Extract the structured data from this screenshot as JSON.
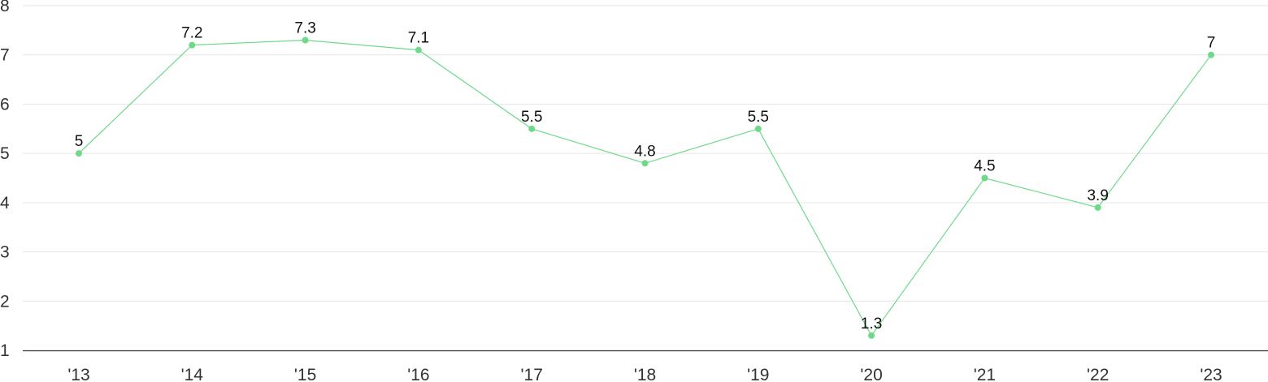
{
  "chart_data": {
    "type": "line",
    "title": "",
    "xlabel": "",
    "ylabel": "",
    "categories": [
      "'13",
      "'14",
      "'15",
      "'16",
      "'17",
      "'18",
      "'19",
      "'20",
      "'21",
      "'22",
      "'23"
    ],
    "series": [
      {
        "values": [
          5,
          7.2,
          7.3,
          7.1,
          5.5,
          4.8,
          5.5,
          1.3,
          4.5,
          3.9,
          7
        ],
        "color": "#6fd98a"
      }
    ],
    "data_labels": [
      "5",
      "7.2",
      "7.3",
      "7.1",
      "5.5",
      "4.8",
      "5.5",
      "1.3",
      "4.5",
      "3.9",
      "7"
    ],
    "ylim": [
      1,
      8
    ],
    "yticks": [
      1,
      2,
      3,
      4,
      5,
      6,
      7,
      8
    ],
    "ytick_labels": [
      "1",
      "2",
      "3",
      "4",
      "5",
      "6",
      "7",
      "8"
    ],
    "grid": true,
    "legend": "none",
    "colors": {
      "line": "#6fd98a",
      "point": "#6fd98a",
      "grid": "#e6e6e6",
      "axis": "#333333"
    }
  }
}
